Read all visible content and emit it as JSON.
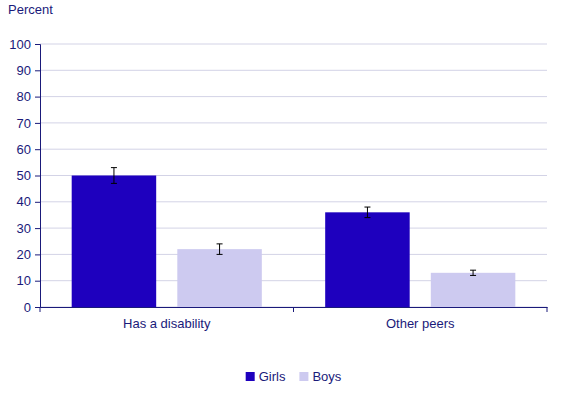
{
  "chart_data": {
    "type": "bar",
    "ylabel": "Percent",
    "categories": [
      "Has a disability",
      "Other peers"
    ],
    "series": [
      {
        "name": "Girls",
        "color": "#1e00be",
        "values": [
          50,
          36
        ],
        "errors": [
          3,
          2
        ]
      },
      {
        "name": "Boys",
        "color": "#cdcaf0",
        "values": [
          22,
          13
        ],
        "errors": [
          2,
          1
        ]
      }
    ],
    "ylim": [
      0,
      100
    ],
    "yticks": [
      0,
      10,
      20,
      30,
      40,
      50,
      60,
      70,
      80,
      90,
      100
    ],
    "grid": true,
    "legend": "bottom"
  }
}
